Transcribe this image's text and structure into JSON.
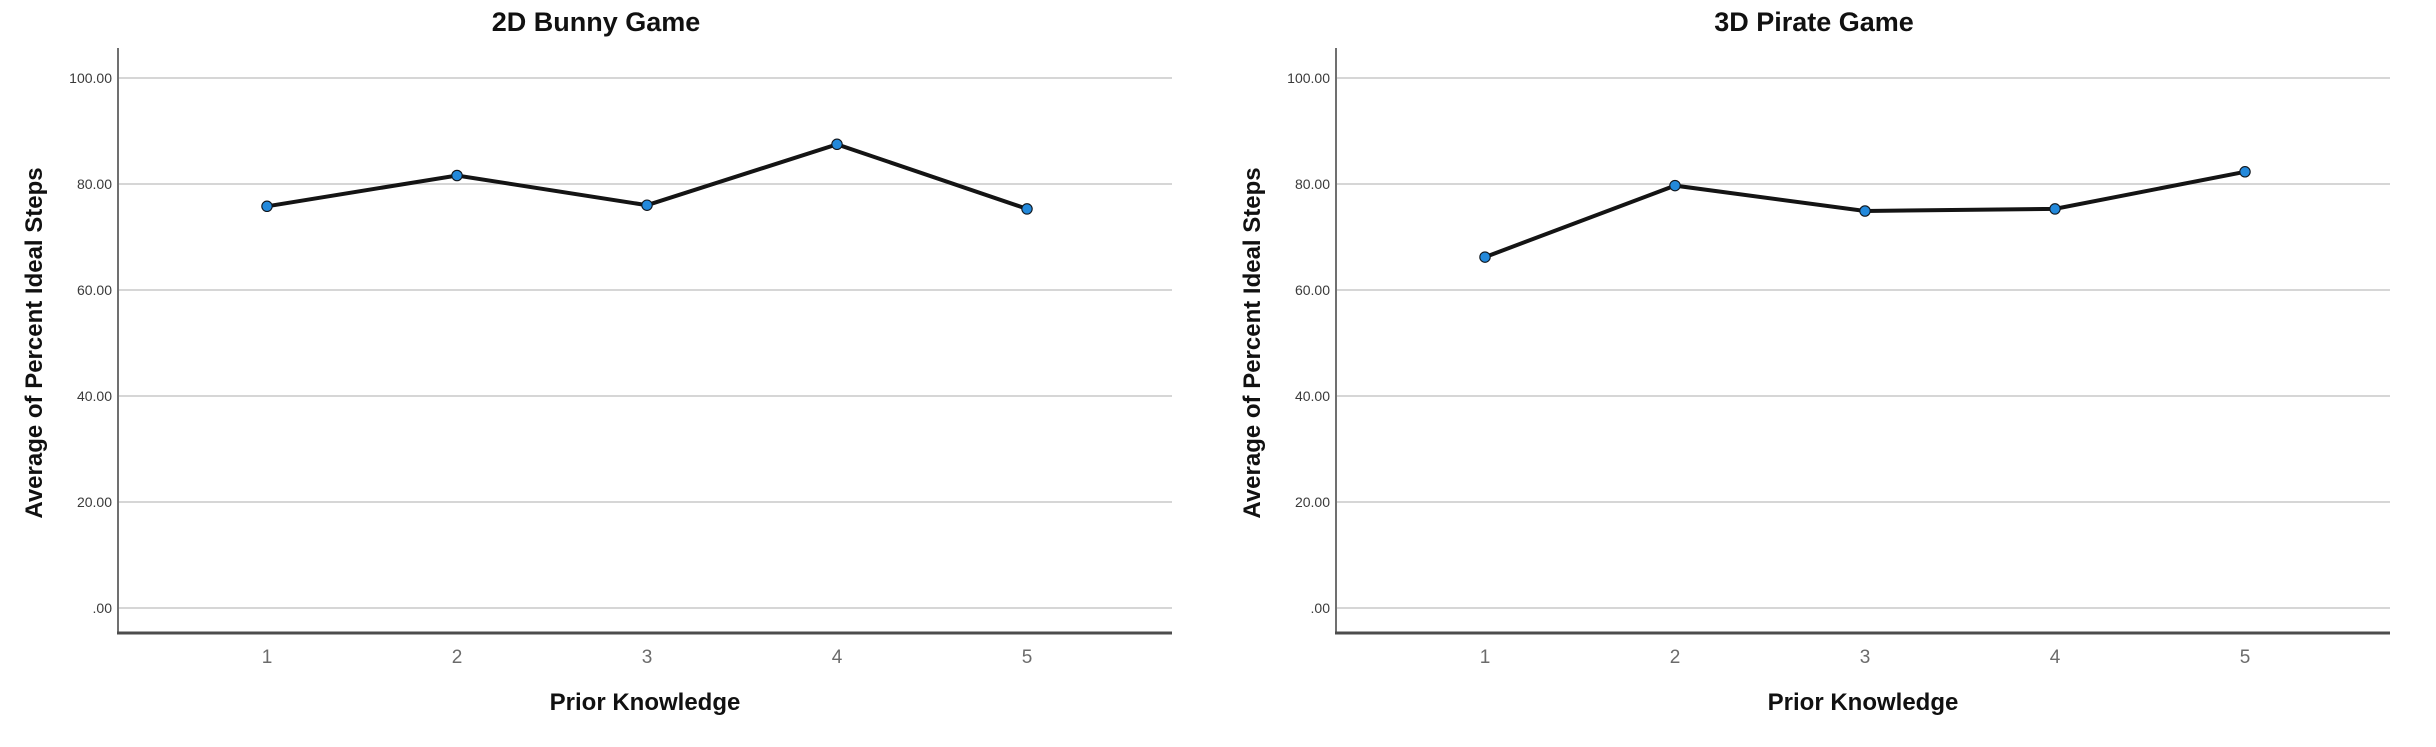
{
  "figure": {
    "background": "#ffffff",
    "panel_count": 2
  },
  "chart_data": [
    {
      "type": "line",
      "title": "2D Bunny Game",
      "xlabel": "Prior Knowledge",
      "ylabel": "Average of Percent Ideal Steps",
      "categories": [
        "1",
        "2",
        "3",
        "4",
        "5"
      ],
      "values": [
        75.8,
        81.6,
        76.0,
        87.5,
        75.3
      ],
      "ylim": [
        0,
        100
      ],
      "yticks": [
        0,
        20,
        40,
        60,
        80,
        100
      ],
      "ytick_labels": [
        ".00",
        "20.00",
        "40.00",
        "60.00",
        "80.00",
        "100.00"
      ],
      "grid": true,
      "legend": "none",
      "line_color": "#141414",
      "marker_color": "#2389DB",
      "marker_edge_color": "#10151B",
      "gridline_color": "#C9C9C9",
      "y_axis_color": "#707070",
      "x_axis_color": "#4D4D4D"
    },
    {
      "type": "line",
      "title": "3D Pirate Game",
      "xlabel": "Prior Knowledge",
      "ylabel": "Average of Percent Ideal Steps",
      "categories": [
        "1",
        "2",
        "3",
        "4",
        "5"
      ],
      "values": [
        66.2,
        79.7,
        74.9,
        75.3,
        82.3
      ],
      "ylim": [
        0,
        100
      ],
      "yticks": [
        0,
        20,
        40,
        60,
        80,
        100
      ],
      "ytick_labels": [
        ".00",
        "20.00",
        "40.00",
        "60.00",
        "80.00",
        "100.00"
      ],
      "grid": true,
      "legend": "none",
      "line_color": "#141414",
      "marker_color": "#2389DB",
      "marker_edge_color": "#10151B",
      "gridline_color": "#C9C9C9",
      "y_axis_color": "#707070",
      "x_axis_color": "#4D4D4D"
    }
  ]
}
